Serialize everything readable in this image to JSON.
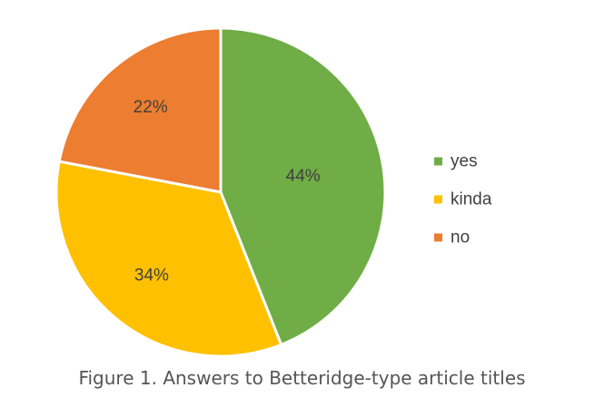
{
  "chart_data": {
    "type": "pie",
    "caption": "Figure 1. Answers to Betteridge-type article titles",
    "slices": [
      {
        "name": "yes",
        "value": 44,
        "label": "44%",
        "color": "#70ad47"
      },
      {
        "name": "kinda",
        "value": 34,
        "label": "34%",
        "color": "#ffc000"
      },
      {
        "name": "no",
        "value": 22,
        "label": "22%",
        "color": "#ed7d31"
      }
    ],
    "start_angle": "12 o'clock",
    "direction": "clockwise",
    "legend_position": "right"
  }
}
